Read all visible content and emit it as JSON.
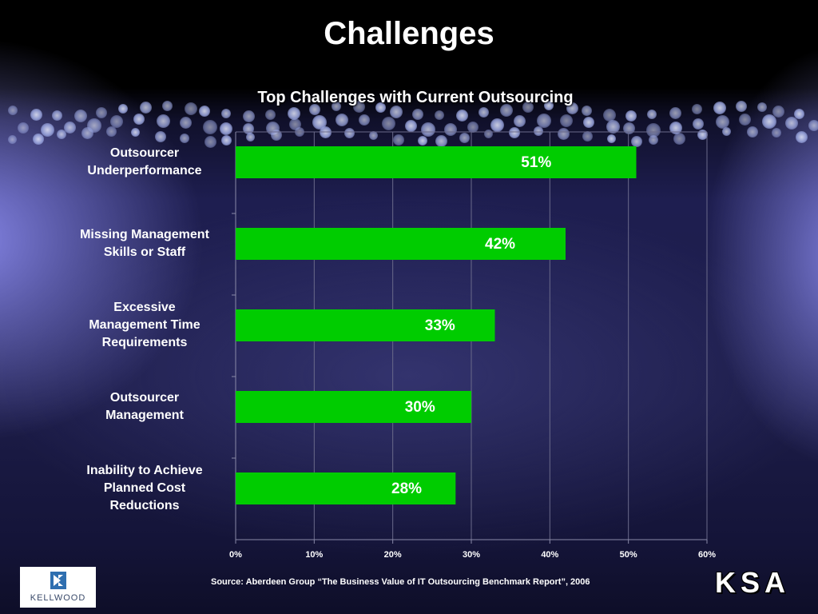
{
  "slide": {
    "title": "Challenges",
    "source": "Source: Aberdeen Group “The Business Value of IT Outsourcing Benchmark Report”, 2006",
    "logo_left_text": "KELLWOOD",
    "logo_right_text": "KSA"
  },
  "chart_data": {
    "type": "bar",
    "orientation": "horizontal",
    "title": "Top Challenges with Current Outsourcing",
    "categories": [
      "Outsourcer Underperformance",
      "Missing Management Skills or Staff",
      "Excessive Management Time Requirements",
      "Outsourcer Management",
      "Inability to Achieve Planned Cost Reductions"
    ],
    "category_lines": [
      [
        "Outsourcer",
        "Underperformance"
      ],
      [
        "Missing Management",
        "Skills or Staff"
      ],
      [
        "Excessive",
        "Management Time",
        "Requirements"
      ],
      [
        "Outsourcer",
        "Management"
      ],
      [
        "Inability to Achieve",
        "Planned Cost",
        "Reductions"
      ]
    ],
    "values": [
      51,
      42,
      33,
      30,
      28
    ],
    "data_labels": [
      "51%",
      "42%",
      "33%",
      "30%",
      "28%"
    ],
    "xlim": [
      0,
      60
    ],
    "xticks": [
      "0%",
      "10%",
      "20%",
      "30%",
      "40%",
      "50%",
      "60%"
    ],
    "grid": true,
    "bar_color": "#00cc00",
    "grid_color": "#6a6a8a"
  }
}
